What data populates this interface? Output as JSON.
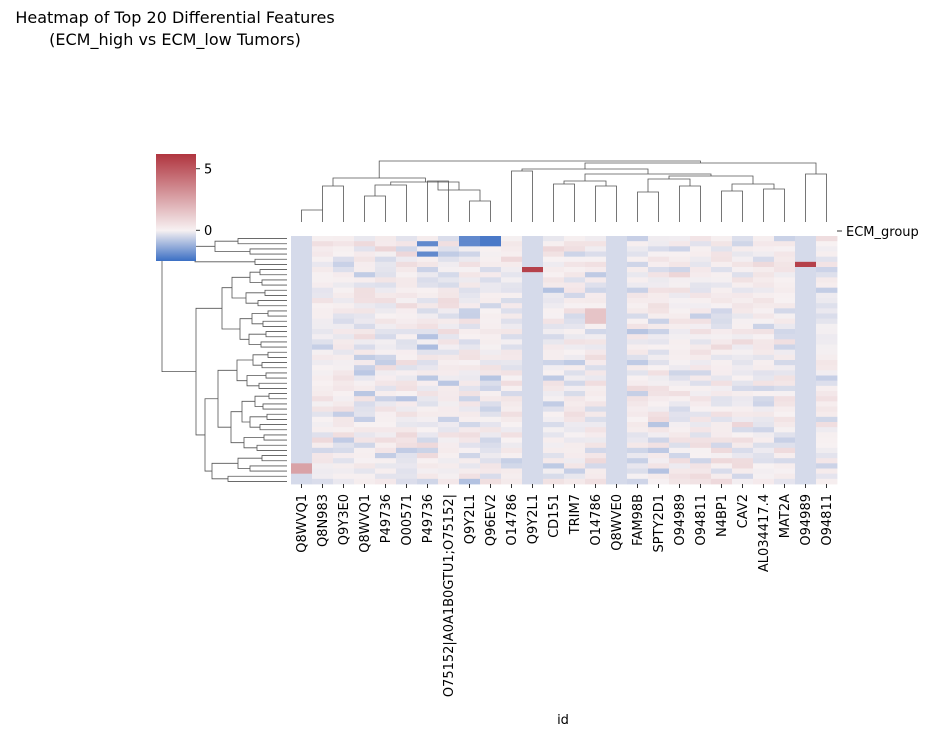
{
  "chart_data": {
    "type": "heatmap",
    "title_lines": [
      "Heatmap of Top 20 Differential Features",
      "(ECM_high vs ECM_low Tumors)"
    ],
    "xlabel": "id",
    "row_color_label": "ECM_group",
    "columns": [
      "Q8WVQ1",
      "Q8N983",
      "Q9Y3E0",
      "Q8WVQ1",
      "P49736",
      "O00571",
      "P49736",
      "O75152|A0A1B0GTU1;O75152|",
      "Q9Y2L1",
      "Q96EV2",
      "O14786",
      "Q9Y2L1",
      "CD151",
      "TRIM7",
      "O14786",
      "Q8WVE0",
      "FAM98B",
      "SPTY2D1",
      "O94989",
      "O94811",
      "N4BP1",
      "CAV2",
      "AL034417.4",
      "MAT2A",
      "O94989",
      "O94811"
    ],
    "colorbar_ticks": [
      5,
      0
    ],
    "colorbar_range": [
      -2.5,
      6.2
    ],
    "colormap": [
      "#3b6fc4",
      "#f7f1f2",
      "#b0353f"
    ]
  }
}
